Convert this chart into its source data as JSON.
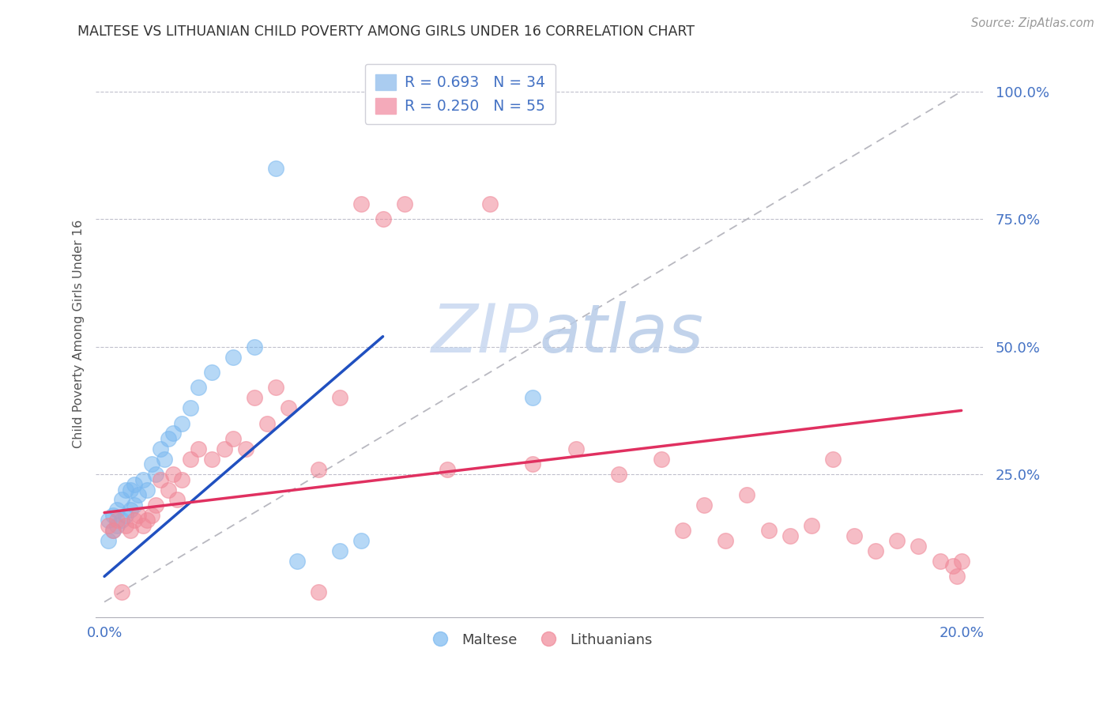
{
  "title": "MALTESE VS LITHUANIAN CHILD POVERTY AMONG GIRLS UNDER 16 CORRELATION CHART",
  "source": "Source: ZipAtlas.com",
  "ylabel": "Child Poverty Among Girls Under 16",
  "right_yticks": [
    "100.0%",
    "75.0%",
    "50.0%",
    "25.0%"
  ],
  "right_ytick_vals": [
    1.0,
    0.75,
    0.5,
    0.25
  ],
  "legend_blue_label": "R = 0.693   N = 34",
  "legend_pink_label": "R = 0.250   N = 55",
  "maltese_color": "#7ab8f0",
  "lithuanian_color": "#f08898",
  "diag_line_color": "#b8b8c0",
  "maltese_trend_color": "#2050c0",
  "lithuanian_trend_color": "#e03060",
  "watermark_zip_color": "#c8d8f0",
  "watermark_atlas_color": "#c0c8e0",
  "xlim_min": -0.002,
  "xlim_max": 0.205,
  "ylim_min": -0.03,
  "ylim_max": 1.08,
  "maltese_x": [
    0.001,
    0.001,
    0.002,
    0.002,
    0.003,
    0.003,
    0.004,
    0.004,
    0.005,
    0.005,
    0.006,
    0.006,
    0.007,
    0.007,
    0.008,
    0.009,
    0.01,
    0.011,
    0.012,
    0.013,
    0.014,
    0.015,
    0.016,
    0.018,
    0.02,
    0.022,
    0.025,
    0.03,
    0.035,
    0.04,
    0.045,
    0.055,
    0.06,
    0.1
  ],
  "maltese_y": [
    0.12,
    0.16,
    0.14,
    0.17,
    0.15,
    0.18,
    0.16,
    0.2,
    0.17,
    0.22,
    0.18,
    0.22,
    0.19,
    0.23,
    0.21,
    0.24,
    0.22,
    0.27,
    0.25,
    0.3,
    0.28,
    0.32,
    0.33,
    0.35,
    0.38,
    0.42,
    0.45,
    0.48,
    0.5,
    0.85,
    0.08,
    0.1,
    0.12,
    0.4
  ],
  "maltese_trend_x": [
    0.0,
    0.065
  ],
  "maltese_trend_y": [
    0.05,
    0.52
  ],
  "lithuanian_x": [
    0.001,
    0.002,
    0.003,
    0.004,
    0.005,
    0.006,
    0.007,
    0.008,
    0.009,
    0.01,
    0.011,
    0.012,
    0.013,
    0.015,
    0.016,
    0.017,
    0.018,
    0.02,
    0.022,
    0.025,
    0.028,
    0.03,
    0.033,
    0.035,
    0.038,
    0.04,
    0.043,
    0.05,
    0.055,
    0.06,
    0.065,
    0.07,
    0.08,
    0.09,
    0.1,
    0.11,
    0.12,
    0.13,
    0.14,
    0.15,
    0.16,
    0.165,
    0.17,
    0.175,
    0.18,
    0.185,
    0.19,
    0.195,
    0.198,
    0.199,
    0.2,
    0.155,
    0.145,
    0.135,
    0.05
  ],
  "lithuanian_y": [
    0.15,
    0.14,
    0.16,
    0.02,
    0.15,
    0.14,
    0.16,
    0.17,
    0.15,
    0.16,
    0.17,
    0.19,
    0.24,
    0.22,
    0.25,
    0.2,
    0.24,
    0.28,
    0.3,
    0.28,
    0.3,
    0.32,
    0.3,
    0.4,
    0.35,
    0.42,
    0.38,
    0.26,
    0.4,
    0.78,
    0.75,
    0.78,
    0.26,
    0.78,
    0.27,
    0.3,
    0.25,
    0.28,
    0.19,
    0.21,
    0.13,
    0.15,
    0.28,
    0.13,
    0.1,
    0.12,
    0.11,
    0.08,
    0.07,
    0.05,
    0.08,
    0.14,
    0.12,
    0.14,
    0.02
  ],
  "lithuanian_trend_x": [
    0.0,
    0.2
  ],
  "lithuanian_trend_y": [
    0.175,
    0.375
  ]
}
